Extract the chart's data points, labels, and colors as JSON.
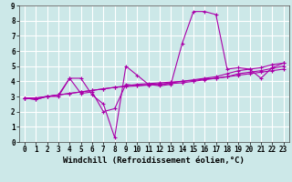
{
  "xlabel": "Windchill (Refroidissement éolien,°C)",
  "background_color": "#cce8e8",
  "line_color": "#aa00aa",
  "grid_color": "#ffffff",
  "xlim": [
    -0.5,
    23.5
  ],
  "ylim": [
    0,
    9
  ],
  "xticks": [
    0,
    1,
    2,
    3,
    4,
    5,
    6,
    7,
    8,
    9,
    10,
    11,
    12,
    13,
    14,
    15,
    16,
    17,
    18,
    19,
    20,
    21,
    22,
    23
  ],
  "yticks": [
    0,
    1,
    2,
    3,
    4,
    5,
    6,
    7,
    8,
    9
  ],
  "series": [
    [
      2.9,
      2.8,
      3.0,
      3.0,
      4.2,
      4.2,
      3.1,
      2.5,
      0.3,
      5.0,
      4.4,
      3.8,
      3.7,
      3.8,
      6.5,
      8.6,
      8.6,
      8.4,
      4.8,
      4.9,
      4.8,
      4.2,
      4.9,
      5.2
    ],
    [
      2.9,
      2.8,
      3.0,
      3.1,
      4.2,
      3.2,
      3.3,
      2.0,
      2.2,
      3.8,
      3.7,
      3.8,
      3.8,
      3.9,
      4.0,
      4.1,
      4.2,
      4.3,
      4.5,
      4.7,
      4.8,
      4.9,
      5.1,
      5.2
    ],
    [
      2.9,
      2.9,
      3.0,
      3.1,
      3.2,
      3.3,
      3.4,
      3.5,
      3.6,
      3.7,
      3.8,
      3.85,
      3.9,
      3.95,
      4.0,
      4.05,
      4.15,
      4.2,
      4.3,
      4.4,
      4.5,
      4.6,
      4.7,
      4.8
    ],
    [
      2.9,
      2.9,
      3.0,
      3.1,
      3.2,
      3.3,
      3.4,
      3.5,
      3.6,
      3.65,
      3.7,
      3.75,
      3.8,
      3.85,
      3.9,
      4.0,
      4.1,
      4.2,
      4.3,
      4.5,
      4.6,
      4.7,
      4.85,
      5.0
    ]
  ],
  "marker": "+",
  "markersize": 3,
  "linewidth": 0.8,
  "xlabel_fontsize": 6.5,
  "tick_fontsize": 5.5
}
